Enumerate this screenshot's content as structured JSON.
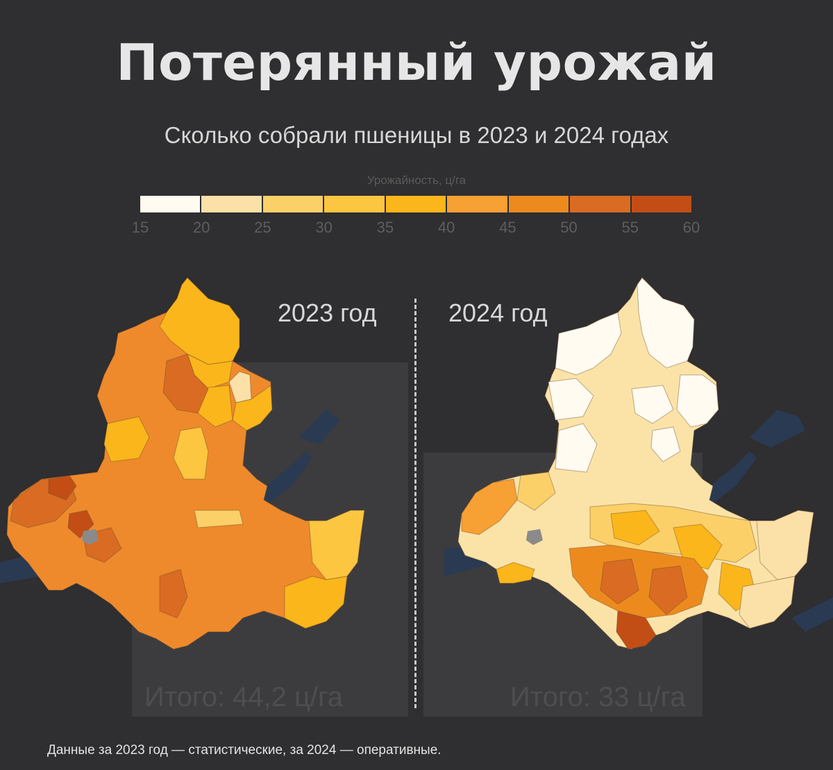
{
  "header": {
    "title": "Потерянный урожай",
    "subtitle": "Сколько собрали пшеницы в 2023 и 2024 годах"
  },
  "legend": {
    "title": "Урожайность, ц/га",
    "ticks": [
      "15",
      "20",
      "25",
      "30",
      "35",
      "40",
      "45",
      "50",
      "55",
      "60"
    ],
    "colors": [
      "#fffbf0",
      "#fbe0a8",
      "#fcd068",
      "#fcc641",
      "#fbb61b",
      "#f7a033",
      "#ed8a1e",
      "#d96c22",
      "#c24e16"
    ]
  },
  "maps": {
    "left": {
      "year": "2023 год",
      "total": "Итого: 44,2 ц/га",
      "dominant_color": "#ee8a2c"
    },
    "right": {
      "year": "2024 год",
      "total": "Итого: 33 ц/га",
      "dominant_color": "#fbe3a8"
    }
  },
  "footnote": "Данные за 2023 год — статистические, за 2024 — оперативные.",
  "colors": {
    "background": "#2f2e30",
    "panel": "#3c3c3e",
    "water": "#2a3a52",
    "city": "#8a8a8a"
  }
}
